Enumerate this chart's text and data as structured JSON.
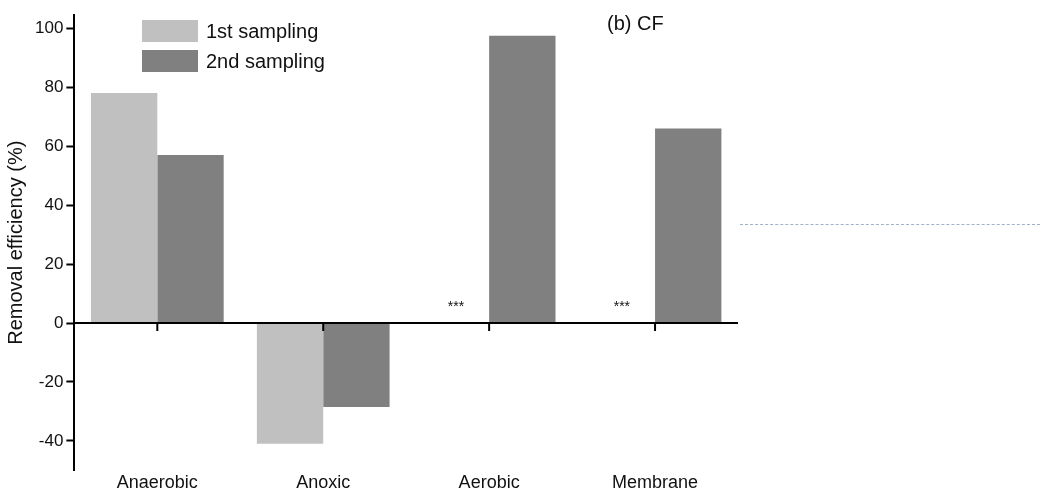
{
  "chart_data": {
    "type": "bar",
    "ylabel": "Removal efficiency (%)",
    "categories": [
      "Anaerobic",
      "Anoxic",
      "Aerobic",
      "Membrane"
    ],
    "series": [
      {
        "name": "1st sampling",
        "color": "#c0c0c0",
        "values": [
          78,
          -41,
          null,
          null
        ]
      },
      {
        "name": "2nd sampling",
        "color": "#808080",
        "values": [
          57,
          -28.5,
          97.5,
          66
        ]
      }
    ],
    "ylim": [
      -50,
      104.5
    ],
    "yticks": [
      -40,
      -20,
      0,
      20,
      40,
      60,
      80,
      100
    ],
    "legend": "top left",
    "annotations": [
      "(b) CF",
      {
        "text": "***",
        "x": "Aerobic",
        "y": 5
      },
      {
        "text": "***",
        "x": "Membrane",
        "y": 5
      }
    ]
  }
}
